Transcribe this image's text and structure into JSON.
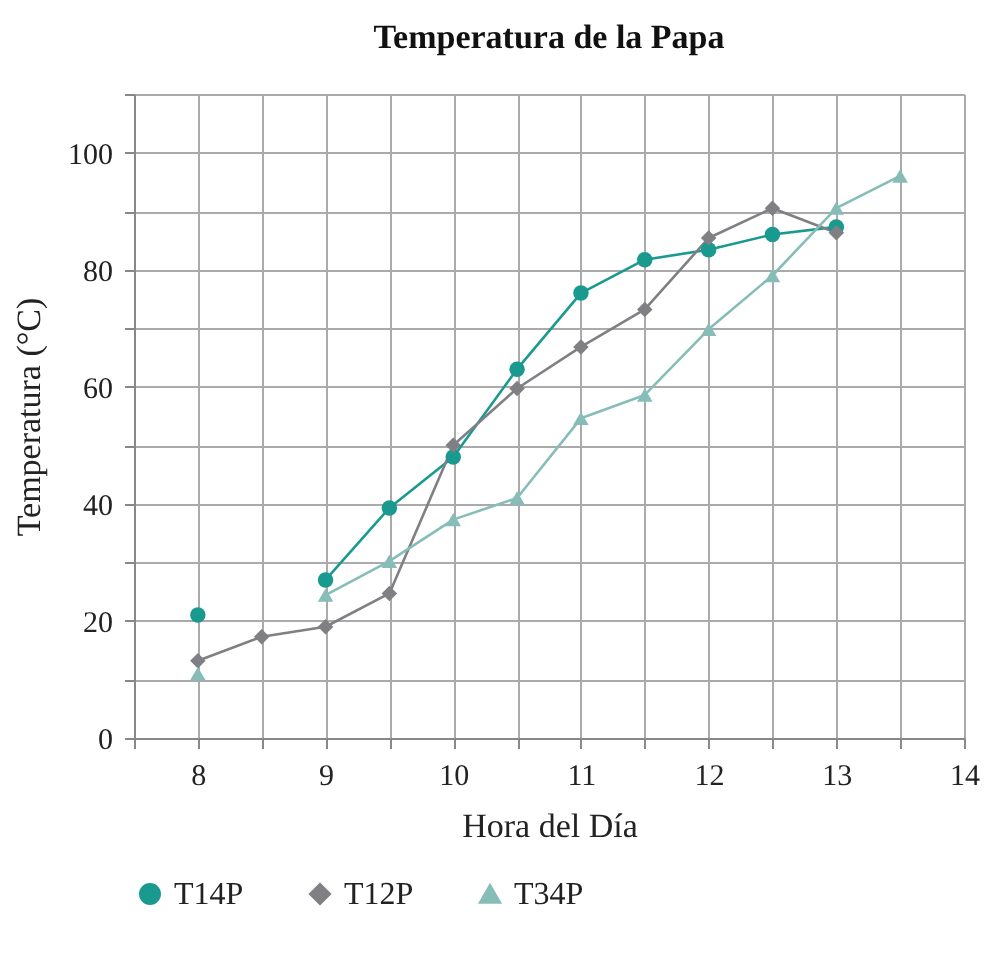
{
  "chart_data": {
    "type": "line",
    "title": "Temperatura de la Papa",
    "xlabel": "Hora del Día",
    "ylabel": "Temperatura (°C)",
    "x": [
      8,
      8.5,
      9,
      9.5,
      10,
      10.5,
      11,
      11.5,
      12,
      12.5,
      13,
      13.5
    ],
    "series": [
      {
        "name": "T14P",
        "color": "#1a9a8f",
        "marker": "circle",
        "values": [
          21,
          null,
          27,
          39.3,
          48,
          63,
          76,
          81.7,
          83.4,
          86,
          87.3,
          null
        ]
      },
      {
        "name": "T12P",
        "color": "#7f7f84",
        "marker": "diamond",
        "values": [
          13.2,
          17.3,
          19,
          24.7,
          50,
          59.7,
          66.8,
          73.2,
          85.4,
          90.5,
          86.3,
          null
        ]
      },
      {
        "name": "T34P",
        "color": "#86bdb8",
        "marker": "triangle",
        "values": [
          11,
          null,
          24.4,
          30.2,
          37.3,
          41,
          54.6,
          58.6,
          69.8,
          79,
          90.5,
          96
        ]
      }
    ],
    "xlim": [
      7.5,
      14
    ],
    "ylim": [
      0,
      110
    ],
    "xticks": [
      {
        "value": 7.5,
        "label": null
      },
      8,
      {
        "value": 8.5,
        "label": null
      },
      9,
      {
        "value": 9.5,
        "label": null
      },
      10,
      {
        "value": 10.5,
        "label": null
      },
      11,
      {
        "value": 11.5,
        "label": null
      },
      12,
      {
        "value": 12.5,
        "label": null
      },
      13,
      {
        "value": 13.5,
        "label": null
      },
      14
    ],
    "yticks": [
      0,
      {
        "value": 10,
        "label": null
      },
      20,
      {
        "value": 30,
        "label": null
      },
      40,
      {
        "value": 50,
        "label": null
      },
      60,
      {
        "value": 70,
        "label": null
      },
      80,
      {
        "value": 90,
        "label": null
      },
      100,
      {
        "value": 110,
        "label": null
      }
    ],
    "grid": true,
    "legend": "bottom",
    "line_style": "solid"
  }
}
